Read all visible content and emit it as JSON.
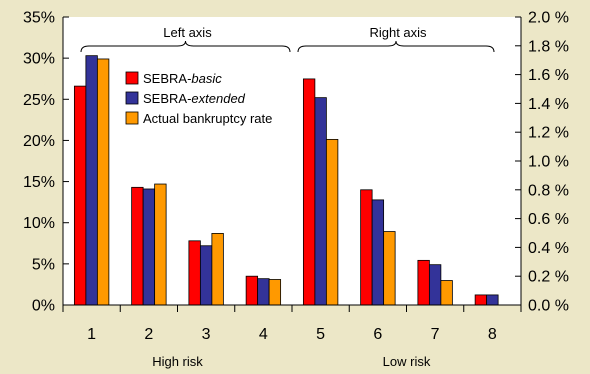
{
  "chart_data": {
    "type": "bar",
    "categories": [
      "1",
      "2",
      "3",
      "4",
      "5",
      "6",
      "7",
      "8"
    ],
    "series": [
      {
        "name_prefix": "SEBRA-",
        "name_em": "basic",
        "color": "#ff0000",
        "values": [
          26.6,
          14.3,
          7.8,
          3.5,
          1.57,
          0.8,
          0.31,
          0.07
        ]
      },
      {
        "name_prefix": "SEBRA-",
        "name_em": "extended",
        "color": "#333399",
        "values": [
          30.3,
          14.1,
          7.2,
          3.2,
          1.44,
          0.73,
          0.28,
          0.07
        ]
      },
      {
        "name_prefix": "",
        "name_em": "",
        "name_plain": "Actual bankruptcy rate",
        "color": "#ff9900",
        "values": [
          29.9,
          14.7,
          8.7,
          3.1,
          1.15,
          0.51,
          0.17,
          null
        ]
      }
    ],
    "left_axis": {
      "ticks": [
        "0%",
        "5%",
        "10%",
        "15%",
        "20%",
        "25%",
        "30%",
        "35%"
      ],
      "ylim": [
        0,
        35
      ],
      "applies_to_categories": [
        1,
        2,
        3,
        4
      ]
    },
    "right_axis": {
      "ticks": [
        "0.0 %",
        "0.2 %",
        "0.4 %",
        "0.6 %",
        "0.8 %",
        "1.0 %",
        "1.2 %",
        "1.4 %",
        "1.6 %",
        "1.8 %",
        "2.0 %"
      ],
      "ylim": [
        0,
        2.0
      ],
      "applies_to_categories": [
        5,
        6,
        7,
        8
      ]
    },
    "braces": [
      {
        "label": "Left axis"
      },
      {
        "label": "Right axis"
      }
    ],
    "group_labels": [
      "High risk",
      "Low risk"
    ],
    "legend_position": "top-left",
    "grid": false
  },
  "colors": {
    "background": "#ece7c7",
    "plot_background": "#ffffff"
  }
}
